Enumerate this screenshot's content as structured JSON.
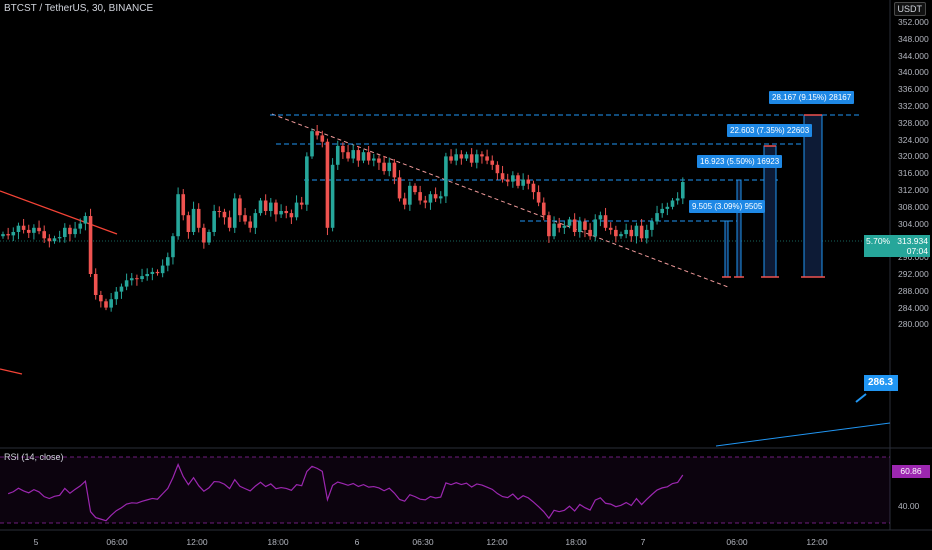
{
  "header": {
    "title": "BTCST / TetherUS, 30, BINANCE"
  },
  "axis": {
    "currency": "USDT"
  },
  "y_ticks": [
    "352.000",
    "348.000",
    "344.000",
    "340.000",
    "336.000",
    "332.000",
    "328.000",
    "324.000",
    "320.000",
    "316.000",
    "312.000",
    "308.000",
    "304.000",
    "300.000",
    "296.000",
    "292.000",
    "288.000",
    "284.000",
    "280.000"
  ],
  "x_ticks": [
    "5",
    "06:00",
    "12:00",
    "18:00",
    "6",
    "06:30",
    "12:00",
    "18:00",
    "7",
    "06:00",
    "12:00"
  ],
  "price_badge": {
    "change": "5.70%",
    "price": "313.934",
    "countdown": "07:04"
  },
  "trend_badge": {
    "value": "286.3"
  },
  "measurements": [
    {
      "label": "9.505 (3.09%) 9505"
    },
    {
      "label": "16.923 (5.50%) 16923"
    },
    {
      "label": "22.603 (7.35%) 22603"
    },
    {
      "label": "28.167 (9.15%) 28167"
    }
  ],
  "rsi": {
    "title": "RSI (14, close)",
    "value": "60.86",
    "tick": "40.00"
  },
  "colors": {
    "up": "#26a69a",
    "down": "#ef5350",
    "rsi": "#9c27b0",
    "measure": "#2196f3",
    "bg": "#000000"
  },
  "chart_data": {
    "type": "candlestick",
    "title": "BTCST / TetherUS, 30, BINANCE",
    "ylim": [
      278,
      354
    ],
    "closes": [
      301.5,
      301.2,
      302.0,
      303.5,
      302.5,
      301.8,
      303.0,
      302.2,
      300.5,
      299.8,
      300.5,
      300.8,
      303.0,
      301.5,
      302.8,
      304.0,
      305.8,
      292.0,
      287.0,
      285.5,
      284.0,
      286.0,
      287.8,
      289.0,
      290.5,
      291.0,
      290.8,
      291.5,
      292.0,
      292.5,
      292.2,
      294.0,
      296.0,
      301.0,
      311.0,
      306.0,
      302.0,
      307.5,
      303.0,
      299.5,
      302.0,
      307.0,
      306.8,
      305.5,
      303.0,
      310.0,
      306.0,
      304.5,
      303.0,
      306.5,
      309.5,
      307.0,
      309.0,
      306.2,
      307.0,
      306.5,
      305.5,
      309.0,
      308.5,
      320.0,
      326.0,
      325.0,
      323.5,
      303.0,
      318.0,
      322.5,
      321.0,
      319.5,
      321.5,
      319.0,
      321.0,
      319.0,
      319.5,
      318.5,
      316.5,
      318.5,
      315.0,
      310.0,
      308.5,
      313.0,
      311.5,
      309.5,
      309.0,
      311.0,
      310.0,
      310.5,
      320.0,
      319.0,
      320.5,
      319.5,
      320.5,
      318.5,
      320.5,
      320.0,
      319.0,
      318.0,
      316.0,
      314.5,
      314.0,
      315.5,
      313.0,
      314.5,
      313.5,
      311.5,
      309.0,
      306.0,
      301.0,
      304.0,
      303.0,
      303.5,
      305.0,
      302.0,
      304.5,
      302.5,
      301.0,
      305.0,
      306.0,
      303.0,
      302.5,
      301.0,
      301.5,
      302.5,
      301.0,
      303.5,
      300.5,
      302.5,
      304.5,
      306.5,
      307.5,
      308.0,
      309.5,
      310.0,
      313.9
    ]
  }
}
